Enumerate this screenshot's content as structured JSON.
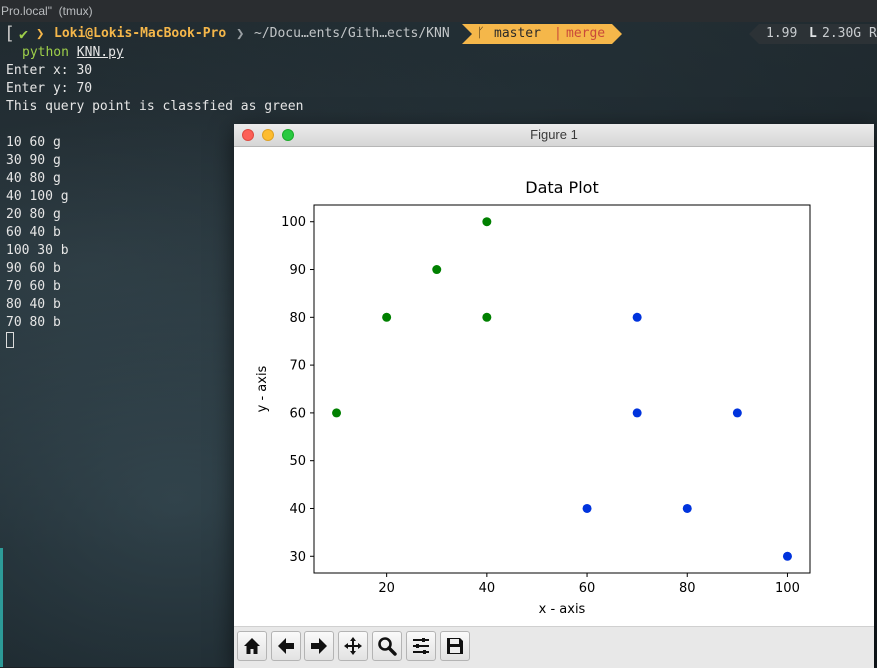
{
  "window_title": "Pro.local\"  (tmux)",
  "prompt": {
    "check": "✔",
    "user_host": "Loki@Lokis-MacBook-Pro",
    "path": "~/Docu…ents/Gith…ects/KNN",
    "branch": "master",
    "branch_sep": "|",
    "branch_state": "merge",
    "load": "1.99",
    "mem_label": "L",
    "mem": "2.30G R"
  },
  "terminal": {
    "command": "python",
    "command_arg": "KNN.py",
    "lines": [
      "Enter x: 30",
      "Enter y: 70",
      "This query point is classfied as green",
      "",
      "10 60 g",
      "30 90 g",
      "40 80 g",
      "40 100 g",
      "20 80 g",
      "60 40 b",
      "100 30 b",
      "90 60 b",
      "70 60 b",
      "80 40 b",
      "70 80 b"
    ]
  },
  "figure": {
    "window_title": "Figure 1",
    "toolbar": [
      "home-icon",
      "back-icon",
      "forward-icon",
      "pan-icon",
      "zoom-icon",
      "configure-icon",
      "save-icon"
    ]
  },
  "chart_data": {
    "type": "scatter",
    "title": "Data Plot",
    "xlabel": "x - axis",
    "ylabel": "y - axis",
    "xlim": [
      5.5,
      104.5
    ],
    "ylim": [
      26.5,
      103.5
    ],
    "xticks": [
      20,
      40,
      60,
      80,
      100
    ],
    "yticks": [
      30,
      40,
      50,
      60,
      70,
      80,
      90,
      100
    ],
    "grid": false,
    "series": [
      {
        "color": "#008000",
        "x": [
          10,
          30,
          40,
          40,
          20
        ],
        "y": [
          60,
          90,
          80,
          100,
          80
        ]
      },
      {
        "color": "#0033dd",
        "x": [
          60,
          100,
          90,
          70,
          80,
          70
        ],
        "y": [
          40,
          30,
          60,
          60,
          40,
          80
        ]
      }
    ]
  }
}
